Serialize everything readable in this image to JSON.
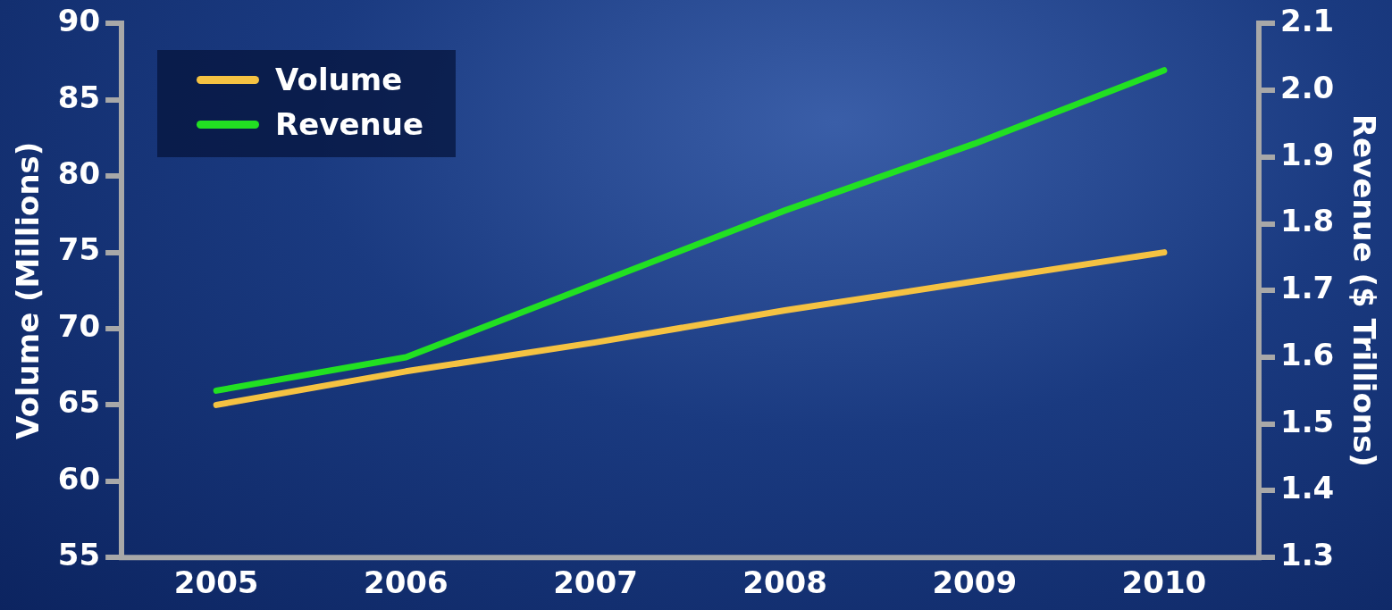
{
  "chart_data": {
    "type": "line",
    "categories": [
      "2005",
      "2006",
      "2007",
      "2008",
      "2009",
      "2010"
    ],
    "ylabel": "Volume (Millions)",
    "y2label": "Revenue ($ Trillions)",
    "ylim": [
      55,
      90
    ],
    "yticks": [
      55,
      60,
      65,
      70,
      75,
      80,
      85,
      90
    ],
    "y2lim": [
      1.3,
      2.1
    ],
    "y2ticks": [
      {
        "value": 1.3,
        "label": "1.3"
      },
      {
        "value": 1.4,
        "label": "1.4"
      },
      {
        "value": 1.5,
        "label": "1.5"
      },
      {
        "value": 1.6,
        "label": "1.6"
      },
      {
        "value": 1.7,
        "label": "1.7"
      },
      {
        "value": 1.8,
        "label": "1.8"
      },
      {
        "value": 1.9,
        "label": "1.9"
      },
      {
        "value": 2.0,
        "label": "2.0"
      },
      {
        "value": 2.1,
        "label": "2.1"
      }
    ],
    "series": [
      {
        "name": "Volume",
        "color": "#f5c242",
        "values": [
          65,
          67.2,
          69.1,
          71.2,
          73.1,
          75
        ]
      },
      {
        "name": "Revenue",
        "color": "#22e022",
        "axis": "y2",
        "values": [
          1.55,
          1.6,
          1.71,
          1.82,
          1.92,
          2.03
        ]
      }
    ],
    "grid": false,
    "legend": "top left",
    "marker": "none",
    "line_style": "solid"
  }
}
